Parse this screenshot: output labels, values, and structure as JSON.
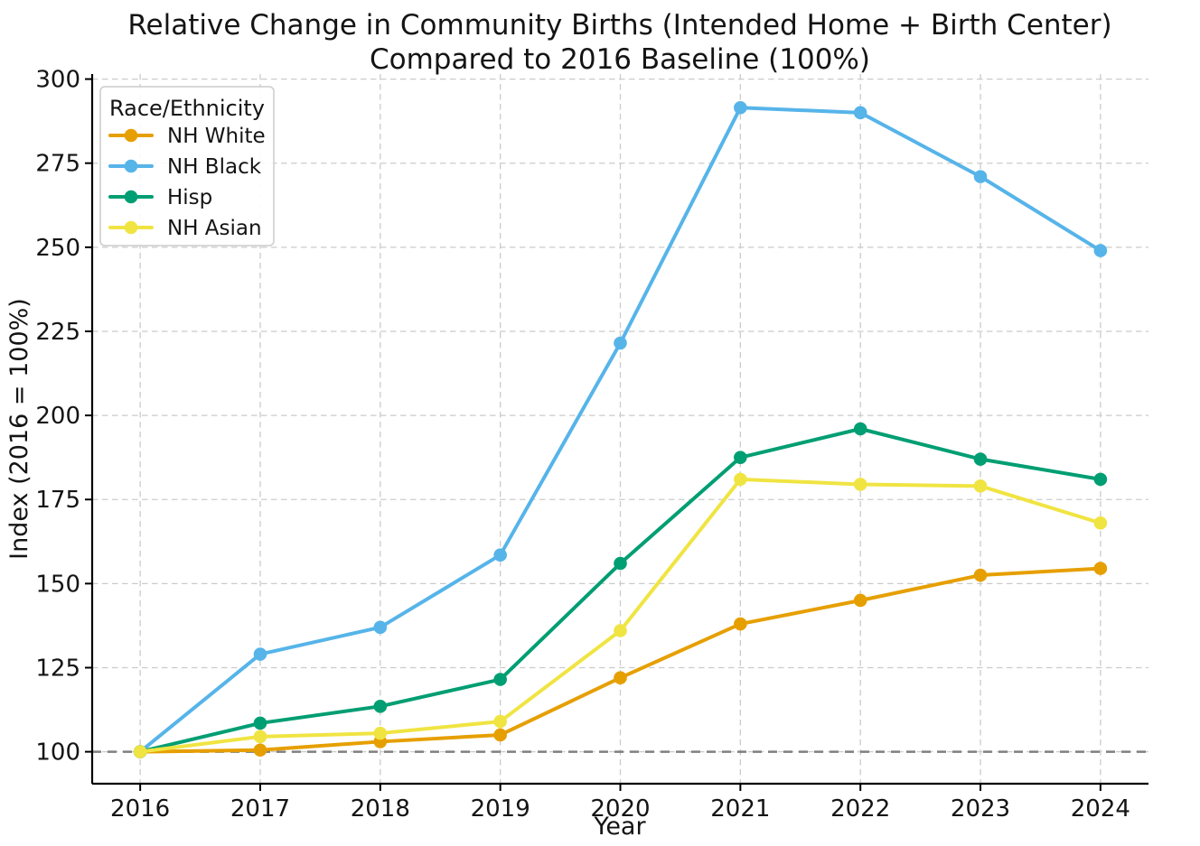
{
  "chart_data": {
    "type": "line",
    "title_line1": "Relative Change in Community Births (Intended Home + Birth Center)",
    "title_line2": "Compared to 2016 Baseline (100%)",
    "xlabel": "Year",
    "ylabel": "Index (2016 = 100%)",
    "legend_title": "Race/Ethnicity",
    "legend_position": "upper-left",
    "grid": true,
    "x": [
      2016,
      2017,
      2018,
      2019,
      2020,
      2021,
      2022,
      2023,
      2024
    ],
    "yticks": [
      100,
      125,
      150,
      175,
      200,
      225,
      250,
      275,
      300
    ],
    "xlim": [
      2015.6,
      2024.4
    ],
    "ylim": [
      90.5,
      301.5
    ],
    "baseline": 100,
    "series": [
      {
        "name": "NH White",
        "color": "#E69F00",
        "values": [
          100,
          100.5,
          103,
          105,
          122,
          138,
          145,
          152.5,
          154.5
        ]
      },
      {
        "name": "NH Black",
        "color": "#56B4E9",
        "values": [
          100,
          129,
          137,
          158.5,
          221.5,
          291.5,
          290,
          271,
          249
        ]
      },
      {
        "name": "Hisp",
        "color": "#009E73",
        "values": [
          100,
          108.5,
          113.5,
          121.5,
          156,
          187.5,
          196,
          187,
          181
        ]
      },
      {
        "name": "NH Asian",
        "color": "#F0E442",
        "values": [
          100,
          104.5,
          105.5,
          109,
          136,
          181,
          179.5,
          179,
          168
        ]
      }
    ],
    "colors": {
      "grid": "#cbcbcb",
      "baseline_dash": "#7f7f7f",
      "spine": "#000000",
      "background": "#ffffff",
      "text": "#141414"
    }
  }
}
